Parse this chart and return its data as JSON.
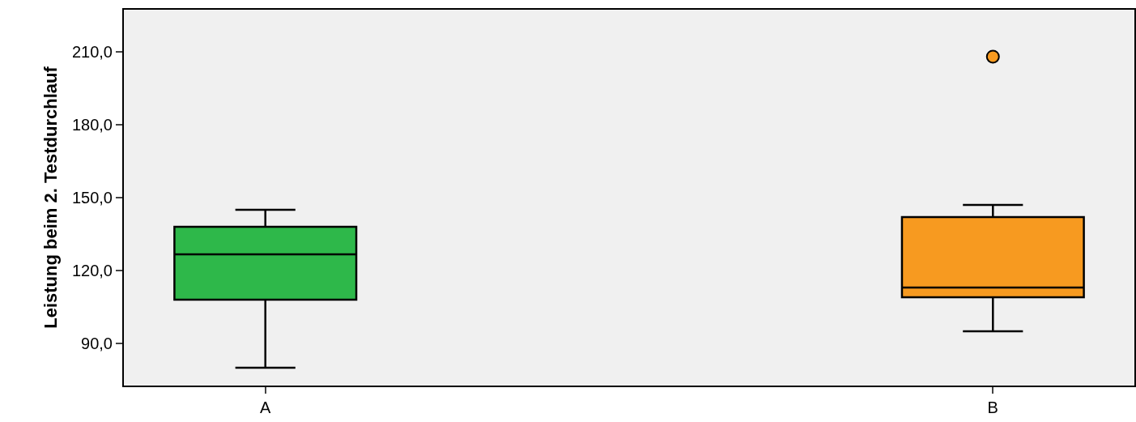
{
  "chart_data": {
    "type": "box",
    "ylabel": "Leistung beim 2. Testdurchlauf",
    "categories": [
      "A",
      "B"
    ],
    "colors": [
      "#2eb84a",
      "#f79a20"
    ],
    "boxes": [
      {
        "low": 80,
        "q1": 108,
        "median": 126.7,
        "q3": 138,
        "high": 145
      },
      {
        "low": 95,
        "q1": 109,
        "median": 113,
        "q3": 142,
        "high": 147,
        "outliers": [
          208
        ]
      }
    ],
    "ylim": [
      72.7,
      227.3
    ],
    "yticks": [
      {
        "value": 90,
        "label": "90,0"
      },
      {
        "value": 120,
        "label": "120,0"
      },
      {
        "value": 150,
        "label": "150,0"
      },
      {
        "value": 180,
        "label": "180,0"
      },
      {
        "value": 210,
        "label": "210,0"
      }
    ],
    "grid": false
  }
}
